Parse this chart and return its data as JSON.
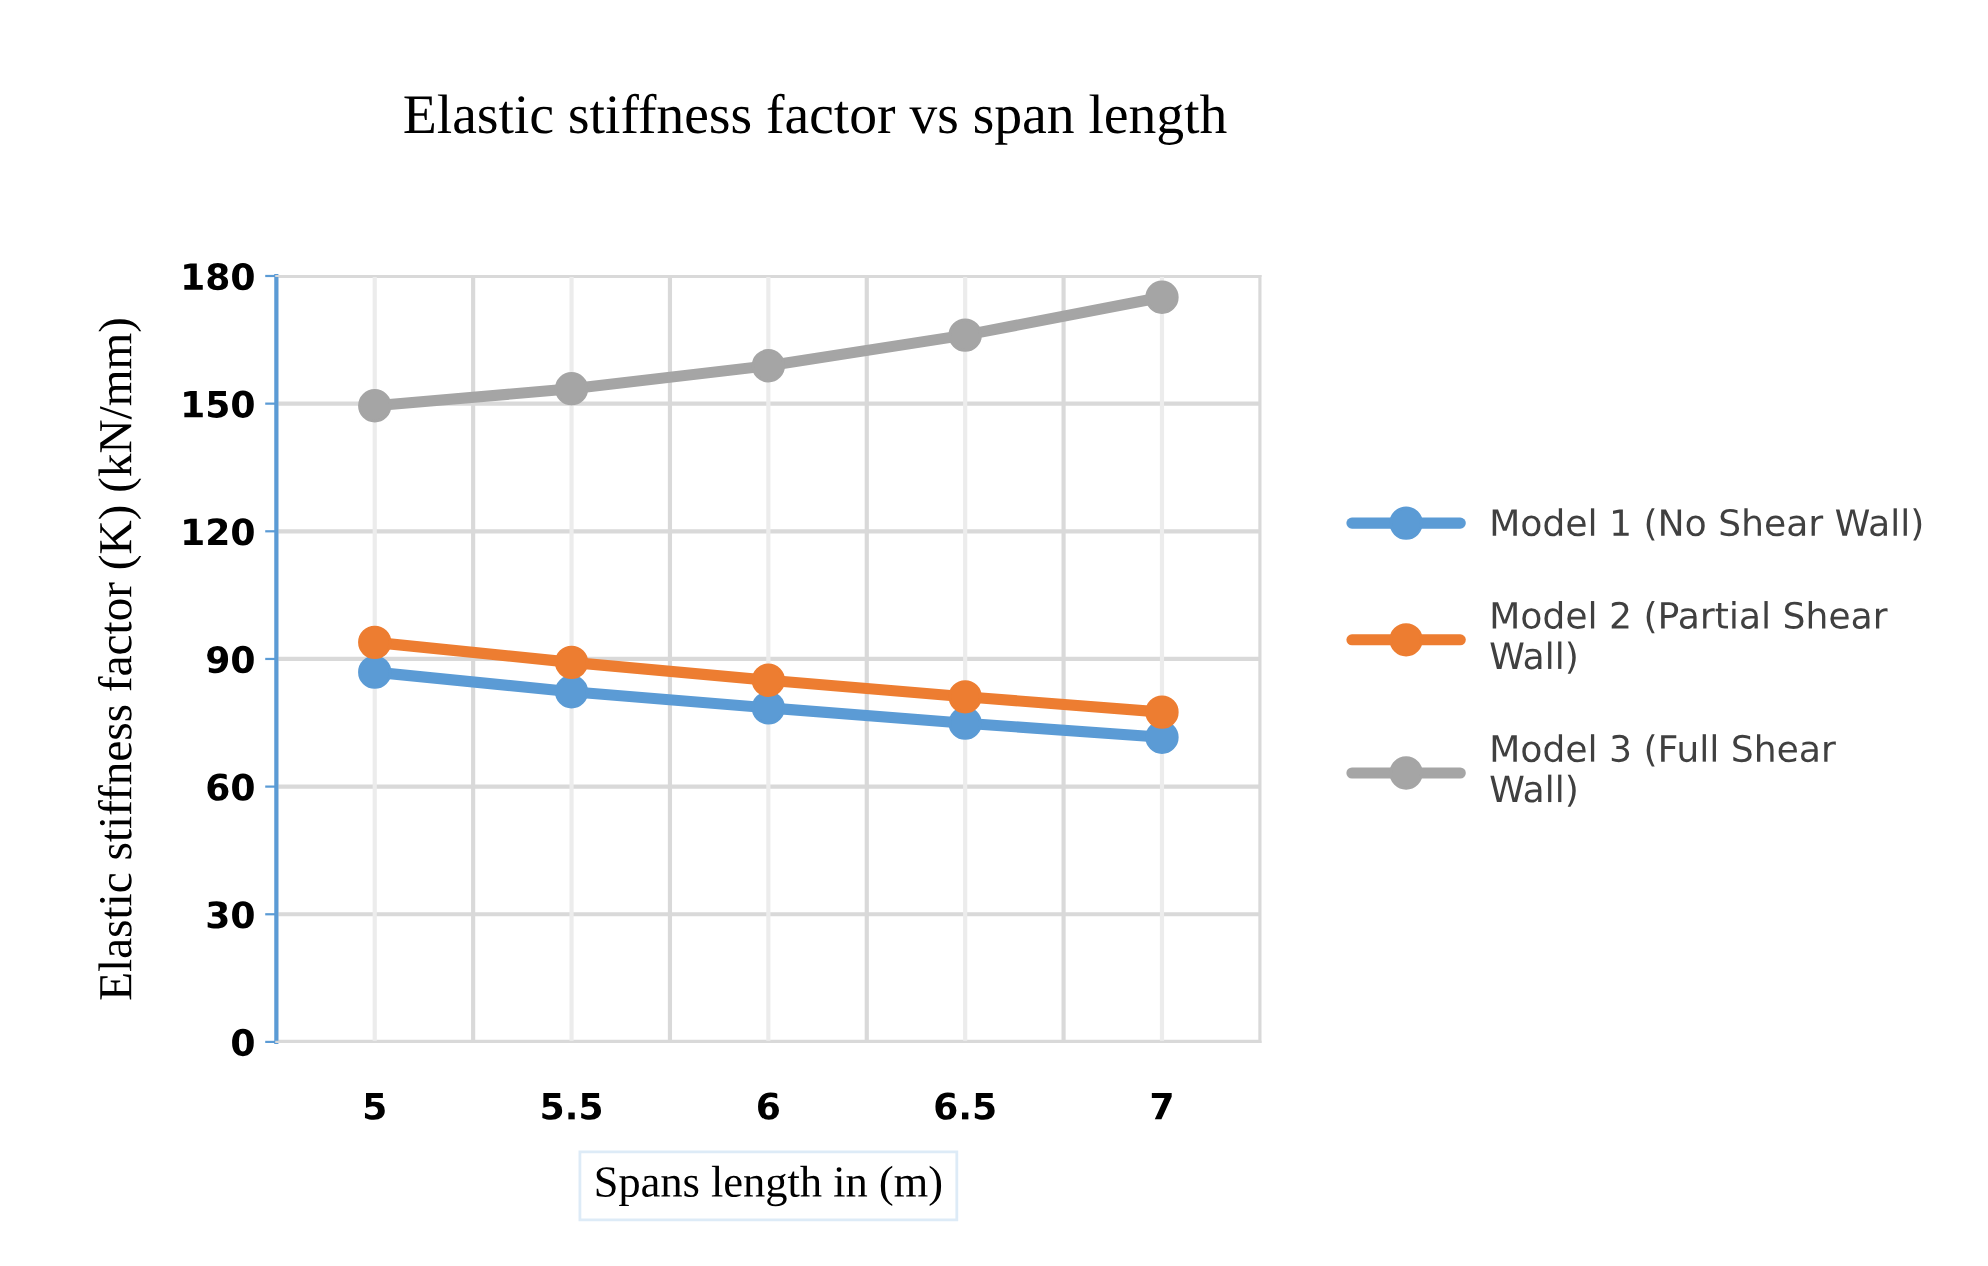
{
  "chart_data": {
    "type": "line",
    "title": "Elastic stiffness factor vs span length",
    "xlabel": "Spans length in (m)",
    "ylabel": "Elastic stiffness factor (K) (kN/mm)",
    "categories": [
      "5",
      "5.5",
      "6",
      "6.5",
      "7"
    ],
    "series": [
      {
        "name": "Model 1 (No Shear Wall)",
        "color": "#5b9bd5",
        "values": [
          86.9,
          82.3,
          78.5,
          74.9,
          71.6
        ]
      },
      {
        "name": "Model 2 (Partial Shear Wall)",
        "color": "#ed7d31",
        "values": [
          93.9,
          89.2,
          85.0,
          81.1,
          77.5
        ]
      },
      {
        "name": "Model 3 (Full Shear Wall)",
        "color": "#a5a5a5",
        "values": [
          149.5,
          153.5,
          158.9,
          166.1,
          175.0
        ]
      }
    ],
    "ylim": [
      0,
      180
    ],
    "yticks": [
      0,
      30,
      60,
      90,
      120,
      150,
      180
    ],
    "grid": true,
    "legend": "right",
    "marker": "circle",
    "line_style": "solid"
  }
}
